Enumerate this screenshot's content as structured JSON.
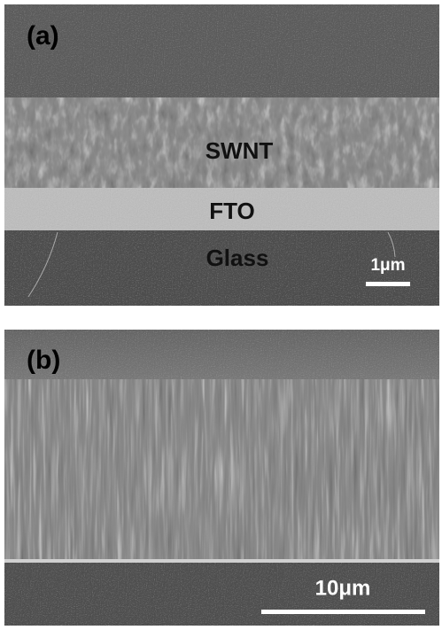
{
  "panels": [
    {
      "label": "(a)",
      "layers": [
        "SWNT",
        "FTO",
        "Glass"
      ],
      "scale_bar": "1μm"
    },
    {
      "label": "(b)",
      "scale_bar": "10μm"
    }
  ]
}
